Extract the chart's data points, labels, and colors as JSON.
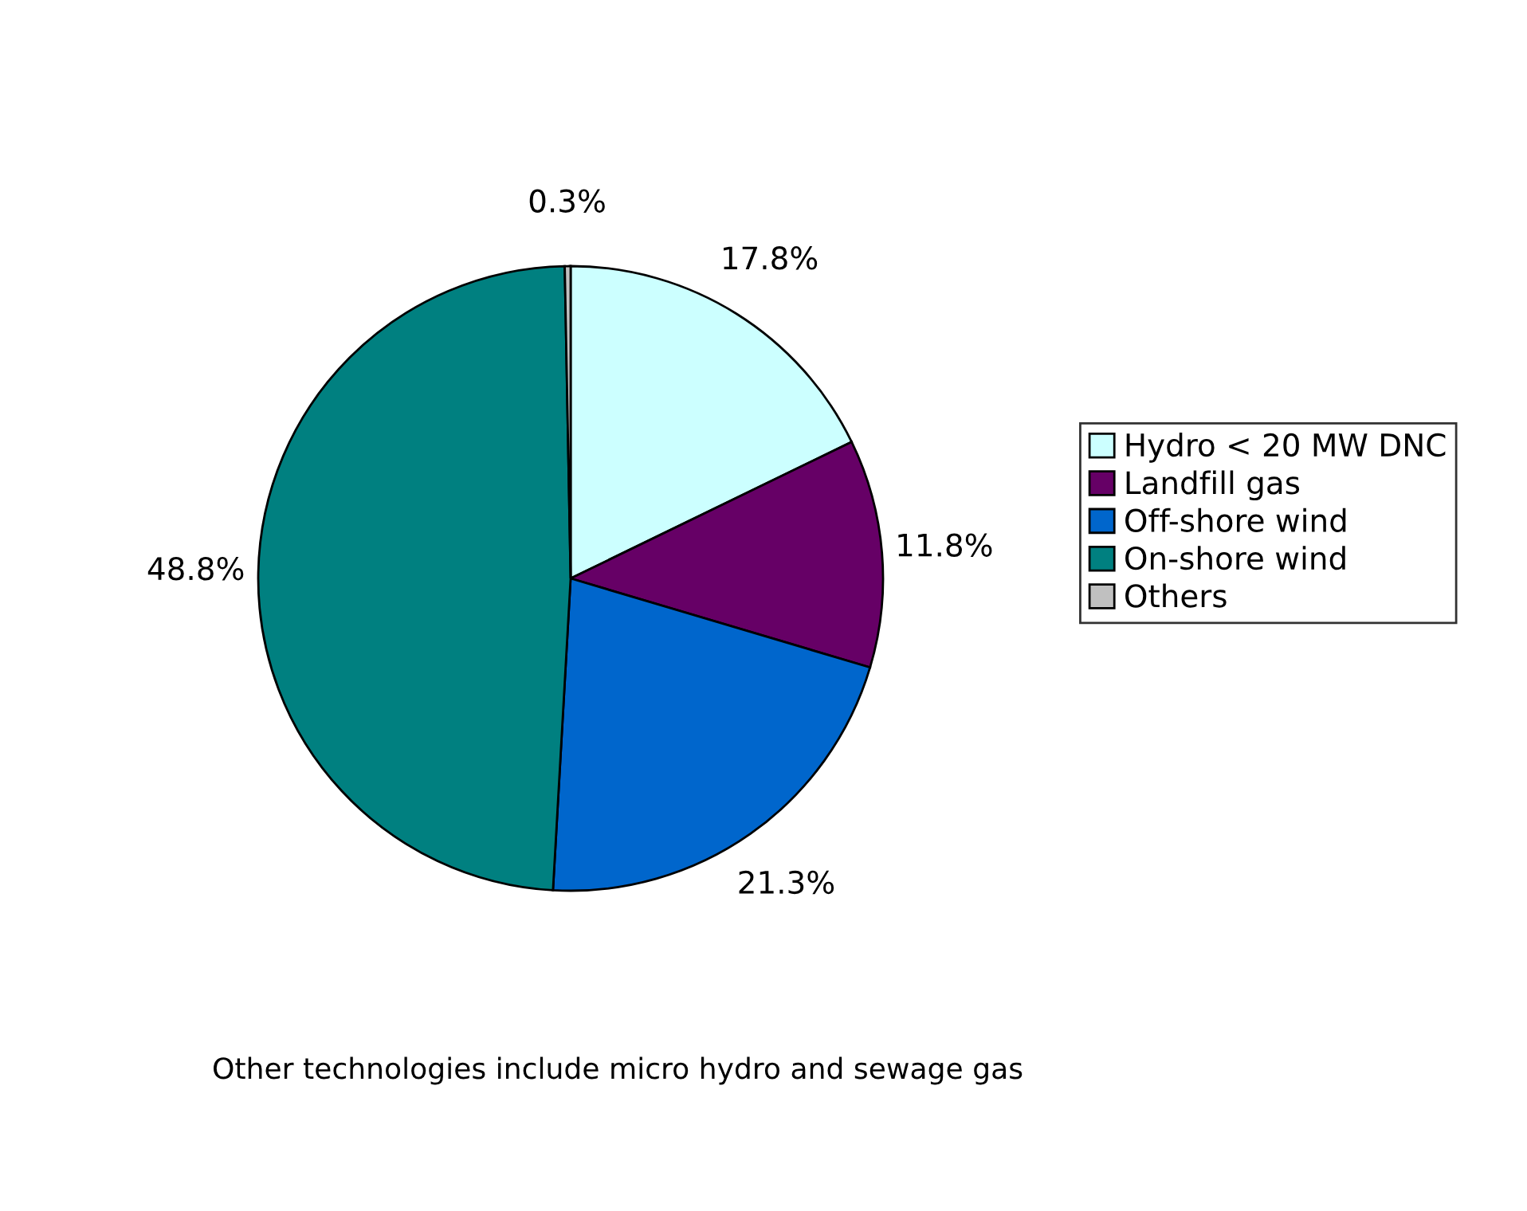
{
  "chart_data": {
    "type": "pie",
    "categories": [
      "Hydro < 20 MW DNC",
      "Landfill gas",
      "Off-shore wind",
      "On-shore wind",
      "Others"
    ],
    "values": [
      17.8,
      11.8,
      21.3,
      48.8,
      0.3
    ],
    "value_labels": [
      "17.8%",
      "11.8%",
      "21.3%",
      "48.8%",
      "0.3%"
    ],
    "colors": [
      "#ccffff",
      "#660066",
      "#0066cc",
      "#008080",
      "#c0c0c0"
    ],
    "legend": "right",
    "annotations": [
      "Other technologies include micro hydro and sewage gas"
    ]
  }
}
